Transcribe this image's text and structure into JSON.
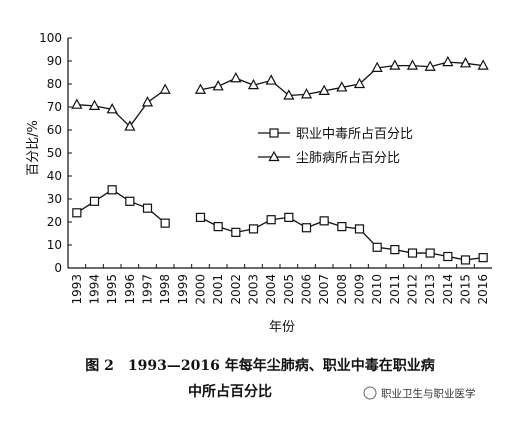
{
  "chart_data": {
    "type": "line",
    "categories": [
      "1993",
      "1994",
      "1995",
      "1996",
      "1997",
      "1998",
      "1999",
      "2000",
      "2001",
      "2002",
      "2003",
      "2004",
      "2005",
      "2006",
      "2007",
      "2008",
      "2009",
      "2010",
      "2011",
      "2012",
      "2013",
      "2014",
      "2015",
      "2016"
    ],
    "series": [
      {
        "name": "职业中毒所占百分比",
        "marker": "square",
        "values": [
          24,
          29,
          34,
          29,
          26,
          19.5,
          null,
          22,
          18,
          15.5,
          17,
          21,
          22,
          17.5,
          20.5,
          18,
          17,
          9,
          8,
          6.5,
          6.5,
          5,
          3.5,
          4.5
        ]
      },
      {
        "name": "尘肺病所占百分比",
        "marker": "triangle",
        "values": [
          71,
          70.5,
          69,
          61.5,
          72,
          77.5,
          null,
          77.5,
          79,
          82.5,
          79.5,
          81.5,
          75,
          75.5,
          77,
          78.5,
          80,
          87,
          88,
          88,
          87.5,
          89.5,
          89,
          88
        ]
      }
    ],
    "xlabel": "年份",
    "ylabel": "百分比/%",
    "ylim": [
      0,
      100
    ],
    "yticks": [
      "0",
      "10",
      "20",
      "30",
      "40",
      "50",
      "60",
      "70",
      "80",
      "90",
      "100"
    ],
    "grid": false,
    "legend": "center-right"
  },
  "caption": {
    "line1": "图 2　1993—2016 年每年尘肺病、职业中毒在职业病",
    "line2": "中所占百分比"
  },
  "watermark": "职业卫生与职业医学",
  "colors": {
    "line": "#111111",
    "background": "#ffffff"
  }
}
